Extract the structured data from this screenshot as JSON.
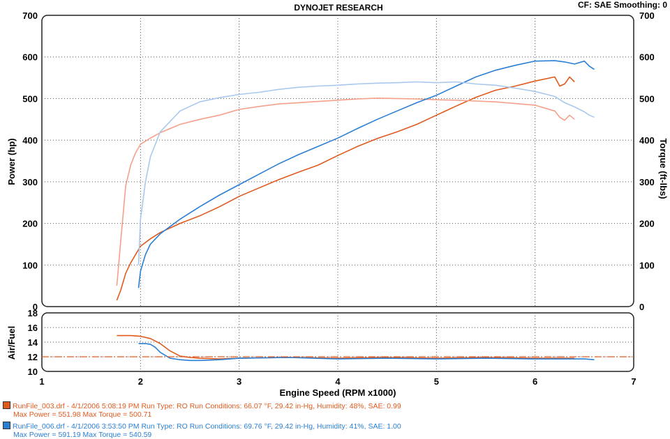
{
  "header": {
    "title": "DYNOJET RESEARCH",
    "cf": "CF: SAE  Smoothing: 0"
  },
  "colors": {
    "run1": "#e05a1e",
    "run1_light": "#f4a08a",
    "run2": "#2a7fd4",
    "run2_light": "#a9c8ee",
    "af_ref": "#e05a1e",
    "grid": "#555555"
  },
  "chart_data": [
    {
      "type": "line",
      "name": "power-torque",
      "xlabel": "Engine Speed (RPM x1000)",
      "ylabel_left": "Power (hp)",
      "ylabel_right": "Torque (ft-lbs)",
      "xlim": [
        1,
        7
      ],
      "ylim": [
        0,
        700
      ],
      "xticks": [
        "1",
        "2",
        "3",
        "4",
        "5",
        "6",
        "7"
      ],
      "yticks": [
        "0",
        "100",
        "200",
        "300",
        "400",
        "500",
        "600",
        "700"
      ],
      "grid": true,
      "series": [
        {
          "name": "RunFile_003.drf power",
          "color": "#e05a1e",
          "x": [
            1.76,
            1.8,
            1.85,
            1.9,
            2.0,
            2.1,
            2.2,
            2.4,
            2.6,
            2.8,
            3.0,
            3.2,
            3.4,
            3.6,
            3.8,
            4.0,
            4.2,
            4.4,
            4.6,
            4.8,
            5.0,
            5.2,
            5.4,
            5.6,
            5.8,
            6.0,
            6.2,
            6.25,
            6.3,
            6.35,
            6.4
          ],
          "y": [
            15,
            40,
            80,
            105,
            145,
            163,
            178,
            200,
            218,
            240,
            265,
            285,
            305,
            323,
            340,
            363,
            385,
            404,
            420,
            438,
            460,
            482,
            503,
            520,
            530,
            542,
            552,
            530,
            535,
            552,
            540
          ]
        },
        {
          "name": "RunFile_003.drf torque",
          "color": "#f4a08a",
          "x": [
            1.76,
            1.8,
            1.85,
            1.9,
            1.95,
            2.0,
            2.1,
            2.2,
            2.4,
            2.6,
            2.8,
            3.0,
            3.2,
            3.4,
            3.6,
            3.8,
            4.0,
            4.2,
            4.4,
            4.6,
            4.8,
            5.0,
            5.2,
            5.4,
            5.6,
            5.8,
            6.0,
            6.2,
            6.25,
            6.3,
            6.35,
            6.4
          ],
          "y": [
            50,
            160,
            290,
            340,
            370,
            390,
            405,
            418,
            438,
            450,
            460,
            474,
            481,
            487,
            490,
            493,
            496,
            499,
            501,
            500,
            499,
            497,
            496,
            494,
            492,
            488,
            484,
            470,
            455,
            448,
            460,
            450
          ]
        },
        {
          "name": "RunFile_006.drf power",
          "color": "#2a7fd4",
          "x": [
            1.98,
            2.0,
            2.05,
            2.1,
            2.2,
            2.4,
            2.6,
            2.8,
            3.0,
            3.2,
            3.4,
            3.6,
            3.8,
            4.0,
            4.2,
            4.4,
            4.6,
            4.8,
            5.0,
            5.2,
            5.4,
            5.6,
            5.8,
            6.0,
            6.2,
            6.3,
            6.4,
            6.5,
            6.55,
            6.6
          ],
          "y": [
            45,
            85,
            125,
            150,
            175,
            210,
            240,
            268,
            293,
            318,
            343,
            365,
            385,
            405,
            428,
            450,
            470,
            490,
            508,
            530,
            552,
            568,
            580,
            590,
            591,
            588,
            583,
            590,
            578,
            570
          ]
        },
        {
          "name": "RunFile_006.drf torque",
          "color": "#a9c8ee",
          "x": [
            1.98,
            2.0,
            2.05,
            2.1,
            2.2,
            2.4,
            2.6,
            2.8,
            3.0,
            3.2,
            3.4,
            3.6,
            3.8,
            4.0,
            4.2,
            4.4,
            4.6,
            4.8,
            5.0,
            5.2,
            5.4,
            5.6,
            5.8,
            6.0,
            6.2,
            6.3,
            6.4,
            6.5,
            6.55,
            6.6
          ],
          "y": [
            100,
            210,
            300,
            360,
            420,
            470,
            492,
            502,
            510,
            515,
            522,
            527,
            530,
            532,
            535,
            537,
            538,
            540,
            538,
            540,
            535,
            532,
            525,
            517,
            505,
            490,
            480,
            468,
            460,
            455
          ]
        }
      ]
    },
    {
      "type": "line",
      "name": "air-fuel",
      "ylabel": "Air/Fuel",
      "xlim": [
        1,
        7
      ],
      "ylim": [
        10,
        18
      ],
      "yticks": [
        "10",
        "12",
        "14",
        "16",
        "18"
      ],
      "grid": true,
      "series": [
        {
          "name": "RunFile_003.drf A/F",
          "color": "#e05a1e",
          "x": [
            1.76,
            1.9,
            2.0,
            2.1,
            2.2,
            2.3,
            2.4,
            2.5,
            2.6,
            2.8,
            3.0,
            3.5,
            4.0,
            4.5,
            5.0,
            5.5,
            6.0,
            6.4
          ],
          "y": [
            14.9,
            14.9,
            14.8,
            14.5,
            13.8,
            12.8,
            12.1,
            11.9,
            11.8,
            11.7,
            11.8,
            11.9,
            11.8,
            11.9,
            11.8,
            11.9,
            11.8,
            11.8
          ]
        },
        {
          "name": "RunFile_006.drf A/F",
          "color": "#2a7fd4",
          "x": [
            1.98,
            2.05,
            2.1,
            2.15,
            2.2,
            2.3,
            2.4,
            2.5,
            2.6,
            2.8,
            3.0,
            3.5,
            4.0,
            4.5,
            5.0,
            5.5,
            6.0,
            6.5,
            6.6
          ],
          "y": [
            13.8,
            13.8,
            13.7,
            13.3,
            12.6,
            11.8,
            11.6,
            11.5,
            11.5,
            11.6,
            11.8,
            11.9,
            11.7,
            11.8,
            11.7,
            11.8,
            11.7,
            11.7,
            11.6
          ]
        },
        {
          "name": "reference",
          "color": "#e05a1e",
          "dashed": true,
          "x": [
            1,
            7
          ],
          "y": [
            12.0,
            12.0
          ]
        }
      ]
    }
  ],
  "legend": [
    {
      "color": "#e05a1e",
      "line1": "RunFile_003.drf - 4/1/2006 5:08:19 PM  Run Type: RO  Run Conditions: 66.07 °F, 29.42 in-Hg,  Humidity:  48%, SAE: 0.99",
      "line2": "Max Power = 551.98  Max Torque = 500.71"
    },
    {
      "color": "#2a7fd4",
      "line1": "RunFile_006.drf - 4/1/2006 3:53:50 PM  Run Type: RO  Run Conditions: 69.76 °F, 29.42 in-Hg,  Humidity:  41%, SAE: 1.00",
      "line2": "Max Power = 591.19  Max Torque = 540.59"
    }
  ]
}
